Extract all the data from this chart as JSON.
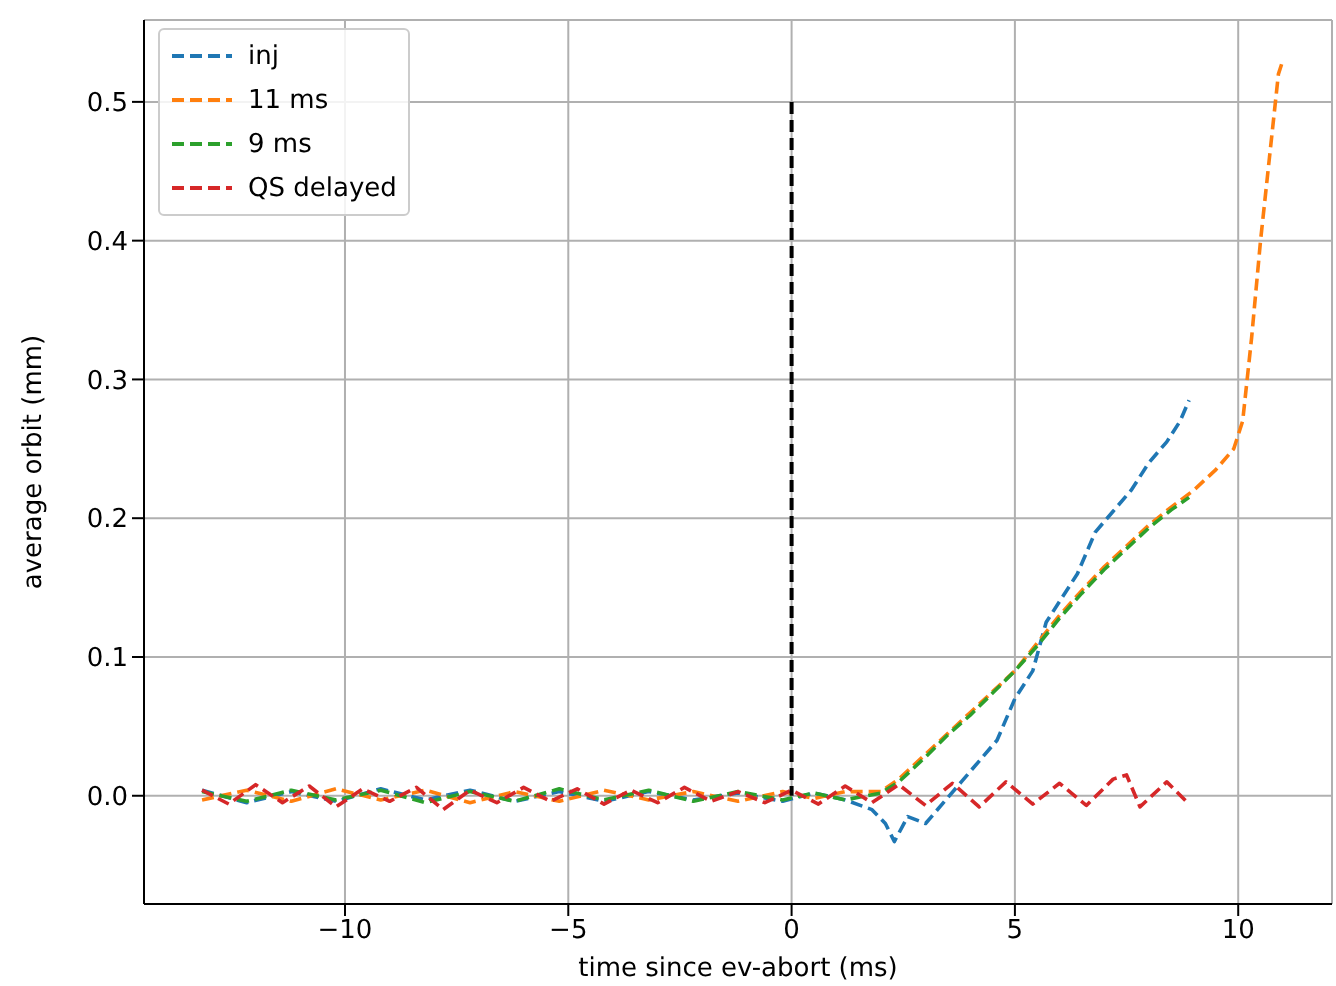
{
  "chart_data": {
    "type": "line",
    "xlabel": "time since ev-abort (ms)",
    "ylabel": "average orbit (mm)",
    "xlim": [
      -14.5,
      12.1
    ],
    "ylim": [
      -0.078,
      0.559
    ],
    "xticks": [
      {
        "value": -10,
        "label": "−10"
      },
      {
        "value": -5,
        "label": "−5"
      },
      0,
      5,
      10
    ],
    "yticks": [
      {
        "value": 0,
        "label": "0.0"
      },
      0.1,
      0.2,
      0.3,
      0.4,
      0.5
    ],
    "grid": true,
    "legend": "top left",
    "line_style": "dashed",
    "series": [
      {
        "name": "inj",
        "color": "#1f77b4",
        "x": [
          -13.2,
          -12.2,
          -11.2,
          -10.2,
          -9.2,
          -8.2,
          -7.2,
          -6.2,
          -5.2,
          -4.2,
          -3.2,
          -2.2,
          -1.2,
          -0.2,
          0.5,
          1.2,
          1.8,
          2.1,
          2.3,
          2.6,
          3,
          3.4,
          3.8,
          4.2,
          4.6,
          5,
          5.4,
          5.7,
          6,
          6.4,
          6.8,
          7.2,
          7.6,
          8,
          8.4,
          8.7,
          8.9
        ],
        "values": [
          0.004,
          -0.005,
          0.003,
          -0.004,
          0.005,
          -0.003,
          0.004,
          -0.004,
          0.003,
          -0.004,
          0.003,
          -0.003,
          0.002,
          -0.004,
          0.002,
          -0.003,
          -0.01,
          -0.02,
          -0.033,
          -0.015,
          -0.02,
          -0.005,
          0.01,
          0.025,
          0.04,
          0.07,
          0.09,
          0.125,
          0.14,
          0.16,
          0.19,
          0.205,
          0.22,
          0.24,
          0.255,
          0.27,
          0.285
        ]
      },
      {
        "name": "11 ms",
        "color": "#ff7f0e",
        "x": [
          -13.2,
          -12.2,
          -11.2,
          -10.2,
          -9.2,
          -8.2,
          -7.2,
          -6.2,
          -5.2,
          -4.2,
          -3.2,
          -2.2,
          -1.2,
          -0.2,
          0.5,
          1.2,
          2,
          2.4,
          3,
          3.5,
          4,
          4.5,
          5,
          5.5,
          6,
          6.5,
          7,
          7.5,
          8,
          8.5,
          9,
          9.5,
          9.9,
          10.1,
          10.3,
          10.5,
          10.7,
          10.9,
          11
        ],
        "values": [
          -0.003,
          0.004,
          -0.004,
          0.005,
          -0.003,
          0.004,
          -0.005,
          0.003,
          -0.004,
          0.004,
          -0.003,
          0.003,
          -0.004,
          0.003,
          -0.002,
          0.003,
          0.003,
          0.012,
          0.03,
          0.045,
          0.06,
          0.075,
          0.09,
          0.11,
          0.13,
          0.148,
          0.165,
          0.18,
          0.195,
          0.208,
          0.22,
          0.235,
          0.25,
          0.27,
          0.33,
          0.4,
          0.46,
          0.52,
          0.53
        ]
      },
      {
        "name": "9 ms",
        "color": "#2ca02c",
        "x": [
          -13.2,
          -12.2,
          -11.2,
          -10.2,
          -9.2,
          -8.2,
          -7.2,
          -6.2,
          -5.2,
          -4.2,
          -3.2,
          -2.2,
          -1.2,
          -0.2,
          0.5,
          1.2,
          2,
          2.4,
          3,
          3.5,
          4,
          4.5,
          5,
          5.5,
          6,
          6.5,
          7,
          7.5,
          8,
          8.5,
          8.9
        ],
        "values": [
          0.003,
          -0.004,
          0.004,
          -0.003,
          0.004,
          -0.005,
          0.003,
          -0.004,
          0.005,
          -0.003,
          0.004,
          -0.004,
          0.003,
          -0.003,
          0.002,
          -0.003,
          0.002,
          0.01,
          0.028,
          0.044,
          0.058,
          0.074,
          0.09,
          0.108,
          0.128,
          0.146,
          0.163,
          0.178,
          0.193,
          0.206,
          0.215
        ]
      },
      {
        "name": "QS delayed",
        "color": "#d62728",
        "x": [
          -13.2,
          -12.6,
          -12,
          -11.4,
          -10.8,
          -10.2,
          -9.6,
          -9,
          -8.4,
          -7.8,
          -7.2,
          -6.6,
          -6,
          -5.4,
          -4.8,
          -4.2,
          -3.6,
          -3,
          -2.4,
          -1.8,
          -1.2,
          -0.6,
          0,
          0.6,
          1.2,
          1.8,
          2.4,
          3,
          3.6,
          4.2,
          4.8,
          5.4,
          6,
          6.6,
          7.2,
          7.5,
          7.8,
          8.4,
          8.9
        ],
        "values": [
          0.004,
          -0.006,
          0.008,
          -0.005,
          0.007,
          -0.008,
          0.005,
          -0.004,
          0.006,
          -0.01,
          0.004,
          -0.005,
          0.006,
          -0.004,
          0.005,
          -0.006,
          0.004,
          -0.005,
          0.006,
          -0.004,
          0.003,
          -0.005,
          0.004,
          -0.006,
          0.007,
          -0.005,
          0.008,
          -0.007,
          0.009,
          -0.008,
          0.01,
          -0.006,
          0.009,
          -0.007,
          0.012,
          0.015,
          -0.008,
          0.01,
          -0.006
        ]
      },
      {
        "color": "#000000",
        "x": [
          0,
          0
        ],
        "values": [
          0.5,
          0
        ]
      }
    ]
  }
}
